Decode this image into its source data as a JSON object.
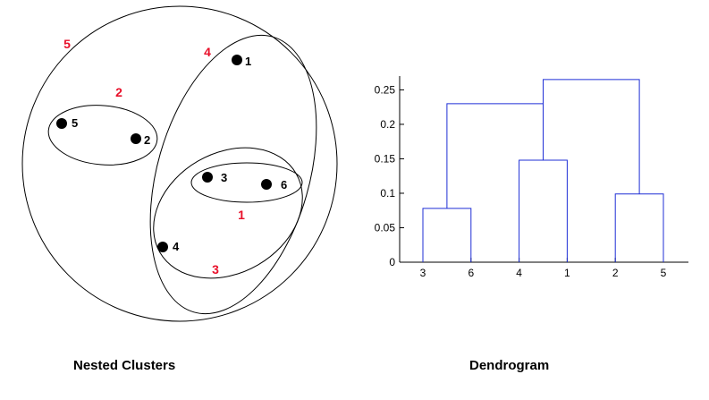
{
  "nested_clusters": {
    "caption": "Nested Clusters",
    "cluster_label_color": "#e8102a",
    "points": [
      {
        "id": "1",
        "label": "1"
      },
      {
        "id": "2",
        "label": "2"
      },
      {
        "id": "3",
        "label": "3"
      },
      {
        "id": "4",
        "label": "4"
      },
      {
        "id": "5",
        "label": "5"
      },
      {
        "id": "6",
        "label": "6"
      }
    ],
    "clusters": [
      {
        "id": "1",
        "label": "1",
        "members": [
          "3",
          "6"
        ]
      },
      {
        "id": "2",
        "label": "2",
        "members": [
          "2",
          "5"
        ]
      },
      {
        "id": "3",
        "label": "3",
        "members": [
          "3",
          "6",
          "4"
        ]
      },
      {
        "id": "4",
        "label": "4",
        "members": [
          "3",
          "6",
          "4",
          "1"
        ]
      },
      {
        "id": "5",
        "label": "5",
        "members": [
          "1",
          "2",
          "3",
          "4",
          "5",
          "6"
        ]
      }
    ]
  },
  "dendrogram": {
    "caption": "Dendrogram",
    "line_color": "#1f2fd6"
  },
  "chart_data": {
    "type": "dendrogram",
    "title": "Dendrogram",
    "leaf_order": [
      "3",
      "6",
      "4",
      "1",
      "2",
      "5"
    ],
    "ylim": [
      0,
      0.27
    ],
    "yticks": [
      "0",
      "0.05",
      "0.1",
      "0.15",
      "0.2",
      "0.25"
    ],
    "merges": [
      {
        "cluster": "1",
        "left": "3",
        "right": "6",
        "height": 0.078
      },
      {
        "cluster": "2",
        "left": "2",
        "right": "5",
        "height": 0.099
      },
      {
        "cluster": "3",
        "left": "1",
        "right": "4",
        "height": 0.148
      },
      {
        "cluster": "4",
        "left": "3",
        "right": "1",
        "height": 0.23
      },
      {
        "cluster": "5",
        "left": "4",
        "right": "2",
        "height": 0.265
      }
    ]
  }
}
